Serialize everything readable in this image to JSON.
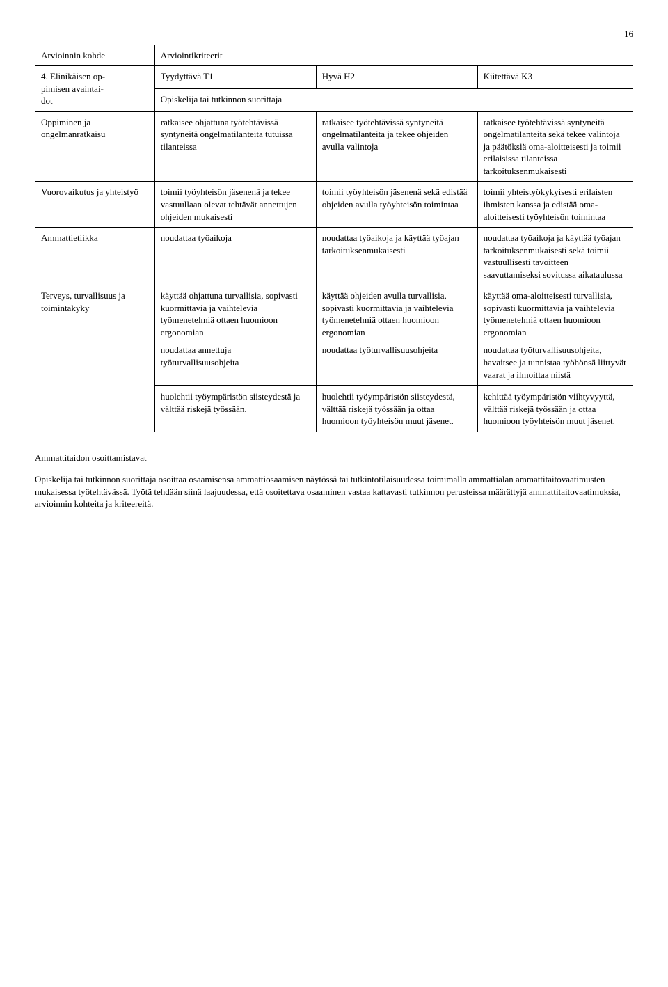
{
  "pageNumber": "16",
  "header": {
    "col0": "Arvioinnin kohde",
    "col1_3": "Arviointikriteerit"
  },
  "row2": {
    "label_line1": "4. Elinikäisen op-",
    "label_line2": "pimisen avaintai-",
    "label_line3": "dot",
    "t1": "Tyydyttävä T1",
    "h2": "Hyvä H2",
    "k3": "Kiitettävä K3",
    "sub": "Opiskelija tai tutkinnon suorittaja"
  },
  "rows": [
    {
      "label": "Oppiminen ja ongelmanratkaisu",
      "t1": "ratkaisee ohjattuna työtehtävissä syntyneitä ongelmatilanteita tutuissa tilanteissa",
      "h2": "ratkaisee työtehtävissä syntyneitä ongelmatilanteita ja tekee ohjeiden avulla valintoja",
      "k3": "ratkaisee työtehtävissä syntyneitä ongelmatilanteita sekä tekee valintoja ja päätöksiä oma-aloitteisesti ja toimii erilaisissa tilanteissa tarkoituksenmukaisesti"
    },
    {
      "label": "Vuorovaikutus ja yhteistyö",
      "t1": "toimii työyhteisön jäsenenä ja tekee vastuullaan olevat tehtävät annettujen ohjeiden mukaisesti",
      "h2": "toimii työyhteisön jäsenenä sekä edistää ohjeiden avulla työyhteisön toimintaa",
      "k3": "toimii yhteistyökykyisesti erilaisten ihmisten kanssa ja edistää oma-aloitteisesti työyhteisön toimintaa"
    },
    {
      "label": "Ammattietiikka",
      "t1": "noudattaa työaikoja",
      "h2": "noudattaa työaikoja ja käyttää työajan tarkoituksenmukaisesti",
      "k3": "noudattaa työaikoja ja käyttää työajan tarkoituksenmukaisesti sekä toimii vastuullisesti tavoitteen saavuttamiseksi sovitussa aikataulussa"
    }
  ],
  "multiRow": {
    "label": "Terveys, turvallisuus ja toimintakyky",
    "blocks": [
      {
        "t1": "käyttää ohjattuna turvallisia, sopivasti kuormittavia ja vaihtelevia työmenetelmiä ottaen huomioon ergonomian",
        "h2": "käyttää ohjeiden avulla turvallisia, sopivasti kuormittavia ja vaihtelevia työmenetelmiä ottaen huomioon ergonomian",
        "k3": "käyttää oma-aloitteisesti turvallisia, sopivasti kuormittavia ja vaihtelevia työmenetelmiä ottaen huomioon ergonomian"
      },
      {
        "t1": "noudattaa annettuja työturvallisuusohjeita",
        "h2": "noudattaa työturvallisuusohjeita",
        "k3": "noudattaa työturvallisuusohjeita, havaitsee ja tunnistaa työhönsä liittyvät vaarat ja ilmoittaa niistä"
      },
      {
        "t1": "huolehtii työympäristön siisteydestä ja välttää riskejä työssään.",
        "h2": "huolehtii työympäristön siisteydestä, välttää riskejä työssään ja ottaa huomioon työyhteisön muut jäsenet.",
        "k3": "kehittää työympäristön viihtyvyyttä, välttää riskejä työssään ja ottaa huomioon työyhteisön muut jäsenet."
      }
    ]
  },
  "after": {
    "heading": "Ammattitaidon osoittamistavat",
    "body": "Opiskelija tai tutkinnon suorittaja osoittaa osaamisensa ammattiosaamisen näytössä tai tutkintotilaisuudessa toimimalla ammattialan ammattitaitovaatimusten mukaisessa työtehtävässä. Työtä tehdään siinä laajuudessa, että osoitettava osaaminen vastaa kattavasti tutkinnon perusteissa määrättyjä ammattitaitovaatimuksia, arvioinnin kohteita ja kriteereitä."
  }
}
